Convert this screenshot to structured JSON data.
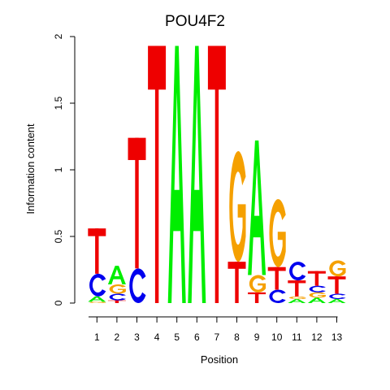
{
  "chart_data": {
    "type": "sequence-logo",
    "title": "POU4F2",
    "xlabel": "Position",
    "ylabel": "Information content",
    "ylim": [
      0,
      2
    ],
    "yticks": [
      "0",
      "0.5",
      "1",
      "1.5",
      "2"
    ],
    "xticks": [
      "1",
      "2",
      "3",
      "4",
      "5",
      "6",
      "7",
      "8",
      "9",
      "10",
      "11",
      "12",
      "13"
    ],
    "colors": {
      "A": "#00ee00",
      "C": "#0000ee",
      "G": "#f5a000",
      "T": "#ee0000"
    },
    "positions": [
      {
        "pos": "1",
        "letters": [
          {
            "base": "G",
            "value": 0.01
          },
          {
            "base": "A",
            "value": 0.04
          },
          {
            "base": "C",
            "value": 0.17
          },
          {
            "base": "T",
            "value": 0.34
          }
        ]
      },
      {
        "pos": "2",
        "letters": [
          {
            "base": "T",
            "value": 0.02
          },
          {
            "base": "C",
            "value": 0.05
          },
          {
            "base": "G",
            "value": 0.07
          },
          {
            "base": "A",
            "value": 0.14
          }
        ]
      },
      {
        "pos": "3",
        "letters": [
          {
            "base": "C",
            "value": 0.26
          },
          {
            "base": "T",
            "value": 0.98
          }
        ]
      },
      {
        "pos": "4",
        "letters": [
          {
            "base": "T",
            "value": 1.93
          }
        ]
      },
      {
        "pos": "5",
        "letters": [
          {
            "base": "A",
            "value": 1.93
          }
        ]
      },
      {
        "pos": "6",
        "letters": [
          {
            "base": "A",
            "value": 1.93
          }
        ]
      },
      {
        "pos": "7",
        "letters": [
          {
            "base": "T",
            "value": 1.93
          }
        ]
      },
      {
        "pos": "8",
        "letters": [
          {
            "base": "T",
            "value": 0.31
          },
          {
            "base": "G",
            "value": 0.83
          }
        ]
      },
      {
        "pos": "9",
        "letters": [
          {
            "base": "T",
            "value": 0.08
          },
          {
            "base": "G",
            "value": 0.13
          },
          {
            "base": "A",
            "value": 1.01
          }
        ]
      },
      {
        "pos": "10",
        "letters": [
          {
            "base": "C",
            "value": 0.1
          },
          {
            "base": "T",
            "value": 0.17
          },
          {
            "base": "G",
            "value": 0.51
          }
        ]
      },
      {
        "pos": "11",
        "letters": [
          {
            "base": "A",
            "value": 0.03
          },
          {
            "base": "G",
            "value": 0.02
          },
          {
            "base": "T",
            "value": 0.12
          },
          {
            "base": "C",
            "value": 0.14
          }
        ]
      },
      {
        "pos": "12",
        "letters": [
          {
            "base": "A",
            "value": 0.04
          },
          {
            "base": "G",
            "value": 0.04
          },
          {
            "base": "C",
            "value": 0.05
          },
          {
            "base": "T",
            "value": 0.11
          }
        ]
      },
      {
        "pos": "13",
        "letters": [
          {
            "base": "A",
            "value": 0.03
          },
          {
            "base": "C",
            "value": 0.04
          },
          {
            "base": "T",
            "value": 0.13
          },
          {
            "base": "G",
            "value": 0.12
          }
        ]
      }
    ]
  }
}
